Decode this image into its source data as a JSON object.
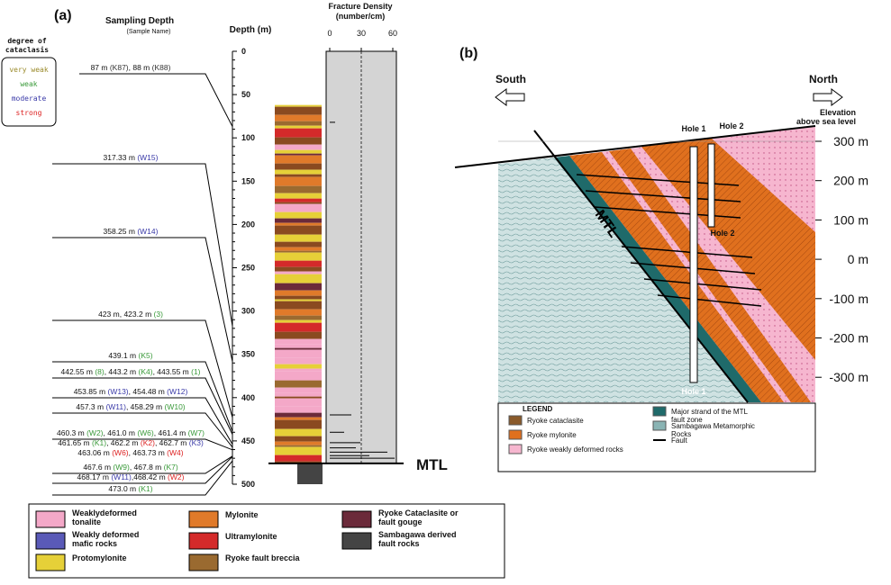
{
  "panel_a": {
    "label": "(a)",
    "sampling_depth_title": "Sampling Depth",
    "sampling_depth_subtitle": "(Sample Name)",
    "depth_axis_title": "Depth (m)",
    "depth_lim": [
      0,
      500
    ],
    "depth_ticks": [
      0,
      50,
      100,
      150,
      200,
      250,
      300,
      350,
      400,
      450,
      500
    ],
    "fracture_title": [
      "Fracture Density",
      "(number/cm)"
    ],
    "fracture_lim": [
      0,
      60
    ],
    "fracture_ticks": [
      0,
      30,
      60
    ],
    "mtl_label": "MTL",
    "cataclasis_legend": {
      "title": [
        "degree of",
        "cataclasis"
      ],
      "items": [
        {
          "label": "very weak",
          "color": "#9a8a2a"
        },
        {
          "label": "weak",
          "color": "#3a9a3a"
        },
        {
          "label": "moderate",
          "color": "#3a3aa8"
        },
        {
          "label": "strong",
          "color": "#d22"
        }
      ]
    },
    "samples": [
      {
        "depth": 87,
        "items": [
          {
            "text": "87 m ",
            "name": "(K87)",
            "color": "#333"
          },
          {
            "text": ", 88 m ",
            "name": "(K88)",
            "color": "#333"
          }
        ]
      },
      {
        "depth": 317.33,
        "items": [
          {
            "text": "317.33 m ",
            "name": "(W15)",
            "color": "#3a3aa8"
          }
        ]
      },
      {
        "depth": 358.25,
        "items": [
          {
            "text": "358.25 m ",
            "name": "(W14)",
            "color": "#3a3aa8"
          }
        ]
      },
      {
        "depth": 423,
        "items": [
          {
            "text": "423 m, 423.2 m ",
            "name": "(3)",
            "color": "#3a9a3a"
          }
        ]
      },
      {
        "depth": 439.1,
        "items": [
          {
            "text": "439.1 m ",
            "name": "(K5)",
            "color": "#3a9a3a"
          }
        ]
      },
      {
        "depth": 442.55,
        "items": [
          {
            "text": "442.55 m ",
            "name": "(8)",
            "color": "#3a9a3a"
          },
          {
            "text": ", 443.2 m ",
            "name": "(K4)",
            "color": "#3a9a3a"
          },
          {
            "text": ", 443.55 m ",
            "name": "(1)",
            "color": "#3a9a3a"
          }
        ]
      },
      {
        "depth": 453.85,
        "items": [
          {
            "text": "453.85 m ",
            "name": "(W13)",
            "color": "#3a3aa8"
          },
          {
            "text": ", 454.48 m ",
            "name": "(W12)",
            "color": "#3a3aa8"
          }
        ]
      },
      {
        "depth": 457.3,
        "items": [
          {
            "text": "457.3 m ",
            "name": "(W11)",
            "color": "#3a3aa8"
          },
          {
            "text": ", 458.29 m ",
            "name": "(W10)",
            "color": "#3a9a3a"
          }
        ]
      },
      {
        "depth": 460.3,
        "items": [
          {
            "text": "460.3 m ",
            "name": "(W2)",
            "color": "#3a9a3a"
          },
          {
            "text": ", 461.0 m ",
            "name": "(W6)",
            "color": "#3a9a3a"
          },
          {
            "text": ", 461.4 m ",
            "name": "(W7)",
            "color": "#3a9a3a"
          }
        ]
      },
      {
        "items": [
          {
            "text": "461.65 m ",
            "name": "(K1)",
            "color": "#3a9a3a"
          },
          {
            "text": ", 462.2 m ",
            "name": "(K2)",
            "color": "#d22"
          },
          {
            "text": ", 462.7 m ",
            "name": "(K3)",
            "color": "#3a3aa8"
          }
        ]
      },
      {
        "items": [
          {
            "text": "463.06 m ",
            "name": "(W6)",
            "color": "#d22"
          },
          {
            "text": ", 463.73 m ",
            "name": "(W4)",
            "color": "#d22"
          }
        ]
      },
      {
        "depth": 467.6,
        "items": [
          {
            "text": "467.6 m ",
            "name": "(W9)",
            "color": "#3a9a3a"
          },
          {
            "text": ", 467.8 m ",
            "name": "(K7)",
            "color": "#3a9a3a"
          }
        ]
      },
      {
        "depth": 468.17,
        "items": [
          {
            "text": "468.17 m ",
            "name": "(W11)",
            "color": "#3a3aa8"
          },
          {
            "text": ",468.42 m ",
            "name": "(W2)",
            "color": "#d22"
          }
        ]
      },
      {
        "depth": 473.0,
        "items": [
          {
            "text": "473.0 m ",
            "name": "(K1)",
            "color": "#3a9a3a"
          }
        ]
      }
    ],
    "lithology_legend": [
      {
        "label": [
          "Weaklydeformed",
          "tonalite"
        ],
        "color": "#f4a8c8"
      },
      {
        "label": [
          "Weakly deformed",
          "mafic rocks"
        ],
        "color": "#5a5ab8"
      },
      {
        "label": [
          "Protomylonite"
        ],
        "color": "#e6d038"
      },
      {
        "label": [
          "Mylonite"
        ],
        "color": "#e07a2a"
      },
      {
        "label": [
          "Ultramylonite"
        ],
        "color": "#d42a2a"
      },
      {
        "label": [
          "Ryoke fault breccia"
        ],
        "color": "#9a6a30"
      },
      {
        "label": [
          "Ryoke Cataclasite or",
          "fault gouge"
        ],
        "color": "#6b2a3a"
      },
      {
        "label": [
          "Sambagawa derived",
          "fault rocks"
        ],
        "color": "#444444"
      }
    ]
  },
  "panel_b": {
    "label": "(b)",
    "south": "South",
    "north": "North",
    "elevation_title": [
      "Elevation",
      "above sea level"
    ],
    "elevations": [
      "300 m",
      "200 m",
      "100 m",
      "0 m",
      "-100 m",
      "-200 m",
      "-300 m"
    ],
    "hole1": "Hole 1",
    "hole2": "Hole 2",
    "hole2_bottom": "Hole 2",
    "hole1_bottom": "Hole 1",
    "mtl_label": "MTL",
    "legend": {
      "title": "LEGEND",
      "items": [
        {
          "label": [
            "Ryoke cataclasite"
          ],
          "color": "#8a5a2a"
        },
        {
          "label": [
            "Ryoke mylonite"
          ],
          "color": "#e0701e"
        },
        {
          "label": [
            "Ryoke weakly deformed rocks"
          ],
          "color": "#f6b6cf"
        },
        {
          "label": [
            "Major strand of the MTL",
            "fault zone"
          ],
          "color": "#1f6a6a"
        },
        {
          "label": [
            "Sambagawa  Metamorphic",
            "Rocks"
          ],
          "color": "#8ab4b4"
        },
        {
          "label": [
            "Fault"
          ],
          "color": "#000000"
        }
      ]
    }
  }
}
